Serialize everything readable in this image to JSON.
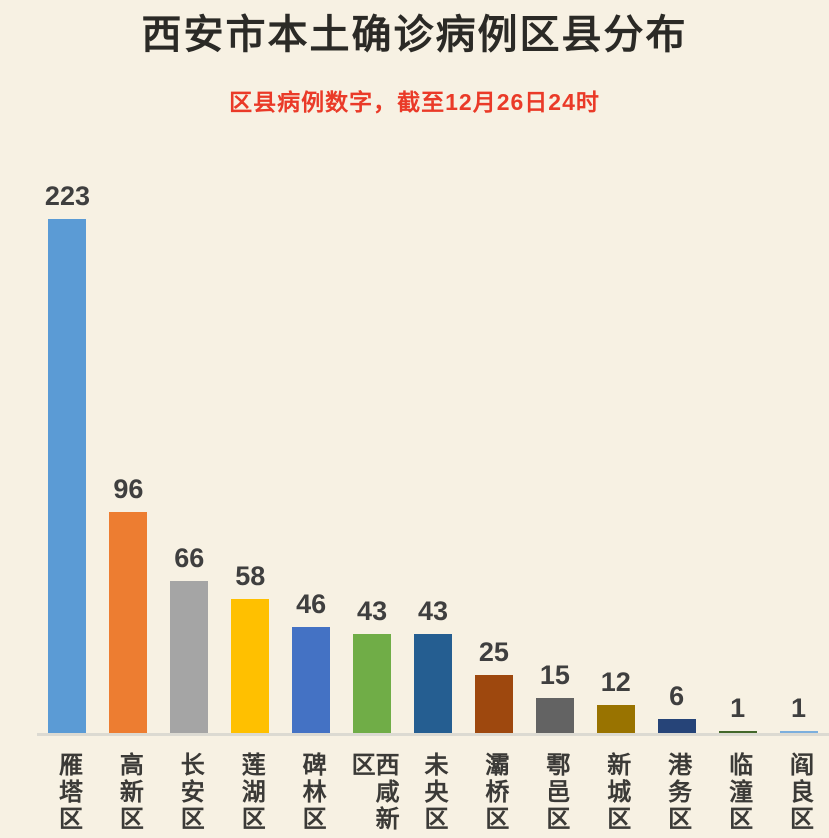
{
  "chart": {
    "title": "西安市本土确诊病例区县分布",
    "subtitle": "区县病例数字，截至12月26日24时"
  },
  "chart_data": {
    "type": "bar",
    "title": "西安市本土确诊病例区县分布",
    "subtitle": "区县病例数字，截至12月26日24时",
    "categories": [
      "雁塔区",
      "高新区",
      "长安区",
      "莲湖区",
      "碑林区",
      "西咸新区",
      "未央区",
      "灞桥区",
      "鄠邑区",
      "新城区",
      "港务区",
      "临潼区",
      "阎良区"
    ],
    "values": [
      223,
      96,
      66,
      58,
      46,
      43,
      43,
      25,
      15,
      12,
      6,
      1,
      1
    ],
    "bar_colors": [
      "#5B9BD5",
      "#ED7D31",
      "#A5A5A5",
      "#FFC000",
      "#4472C4",
      "#70AD47",
      "#255E91",
      "#9E480E",
      "#636363",
      "#997300",
      "#264478",
      "#43682B",
      "#7CAFDD"
    ],
    "xlabel": "",
    "ylabel": "",
    "ylim": [
      0,
      230
    ],
    "grid": false,
    "legend": false,
    "value_labels": "above-bar",
    "category_label_orientation": "vertical-upright"
  },
  "style": {
    "background_color": "#f7f1e3",
    "title_color": "#2b2a26",
    "subtitle_color": "#ea3a28",
    "value_label_color": "#3f3f3f",
    "category_label_color": "#3b3a37",
    "axis_line_color": "#dcdad2"
  }
}
